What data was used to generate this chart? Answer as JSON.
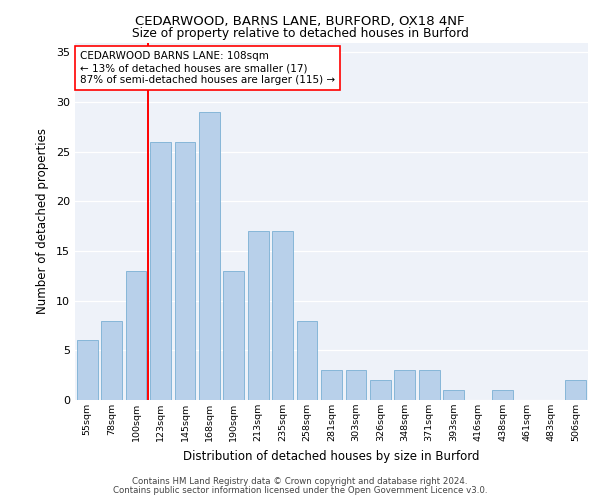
{
  "title1": "CEDARWOOD, BARNS LANE, BURFORD, OX18 4NF",
  "title2": "Size of property relative to detached houses in Burford",
  "xlabel": "Distribution of detached houses by size in Burford",
  "ylabel": "Number of detached properties",
  "categories": [
    "55sqm",
    "78sqm",
    "100sqm",
    "123sqm",
    "145sqm",
    "168sqm",
    "190sqm",
    "213sqm",
    "235sqm",
    "258sqm",
    "281sqm",
    "303sqm",
    "326sqm",
    "348sqm",
    "371sqm",
    "393sqm",
    "416sqm",
    "438sqm",
    "461sqm",
    "483sqm",
    "506sqm"
  ],
  "values": [
    6,
    8,
    13,
    26,
    26,
    29,
    13,
    17,
    17,
    8,
    3,
    3,
    2,
    3,
    3,
    1,
    0,
    1,
    0,
    0,
    2
  ],
  "bar_color": "#b8d0ea",
  "bar_edge_color": "#7aafd4",
  "vline_x_index": 2,
  "vline_color": "red",
  "annotation_text": "CEDARWOOD BARNS LANE: 108sqm\n← 13% of detached houses are smaller (17)\n87% of semi-detached houses are larger (115) →",
  "annotation_box_color": "white",
  "annotation_box_edge": "red",
  "ylim": [
    0,
    36
  ],
  "yticks": [
    0,
    5,
    10,
    15,
    20,
    25,
    30,
    35
  ],
  "background_color": "#eef2f9",
  "footer1": "Contains HM Land Registry data © Crown copyright and database right 2024.",
  "footer2": "Contains public sector information licensed under the Open Government Licence v3.0."
}
